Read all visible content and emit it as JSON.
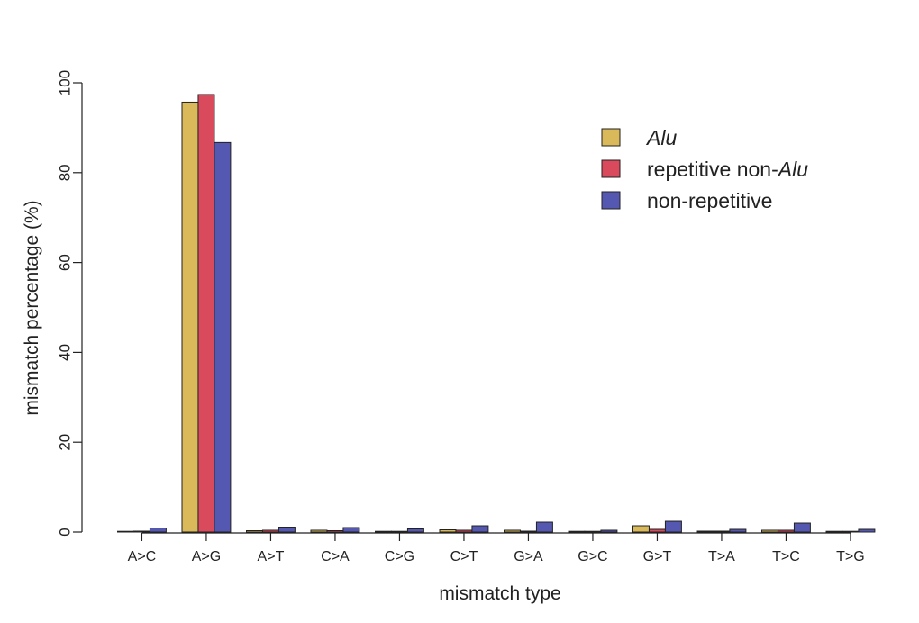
{
  "chart_data": {
    "type": "bar",
    "title": "",
    "xlabel": "mismatch type",
    "ylabel": "mismatch percentage (%)",
    "ylim": [
      0,
      100
    ],
    "yticks": [
      "0",
      "20",
      "40",
      "60",
      "80",
      "100"
    ],
    "categories": [
      "A>C",
      "A>G",
      "A>T",
      "C>A",
      "C>G",
      "C>T",
      "G>A",
      "G>C",
      "G>T",
      "T>A",
      "T>C",
      "T>G"
    ],
    "series": [
      {
        "name": "Alu",
        "color": "#d9b95a",
        "values": [
          0.1,
          95.7,
          0.3,
          0.4,
          0.1,
          0.5,
          0.4,
          0.1,
          1.4,
          0.2,
          0.4,
          0.1
        ]
      },
      {
        "name": "repetitive non-Alu",
        "color": "#d84a5c",
        "values": [
          0.2,
          97.4,
          0.4,
          0.3,
          0.1,
          0.4,
          0.2,
          0.1,
          0.6,
          0.2,
          0.4,
          0.1
        ]
      },
      {
        "name": "non-repetitive",
        "color": "#5558b0",
        "values": [
          0.9,
          86.7,
          1.1,
          1.0,
          0.7,
          1.4,
          2.2,
          0.4,
          2.4,
          0.6,
          2.0,
          0.6
        ]
      }
    ],
    "legend": {
      "position": "top-right",
      "items": [
        {
          "parts": [
            {
              "text": "Alu",
              "italic": true
            }
          ]
        },
        {
          "parts": [
            {
              "text": "repetitive non-",
              "italic": false
            },
            {
              "text": "Alu",
              "italic": true
            }
          ]
        },
        {
          "parts": [
            {
              "text": "non-repetitive",
              "italic": false
            }
          ]
        }
      ]
    },
    "grid": false
  }
}
